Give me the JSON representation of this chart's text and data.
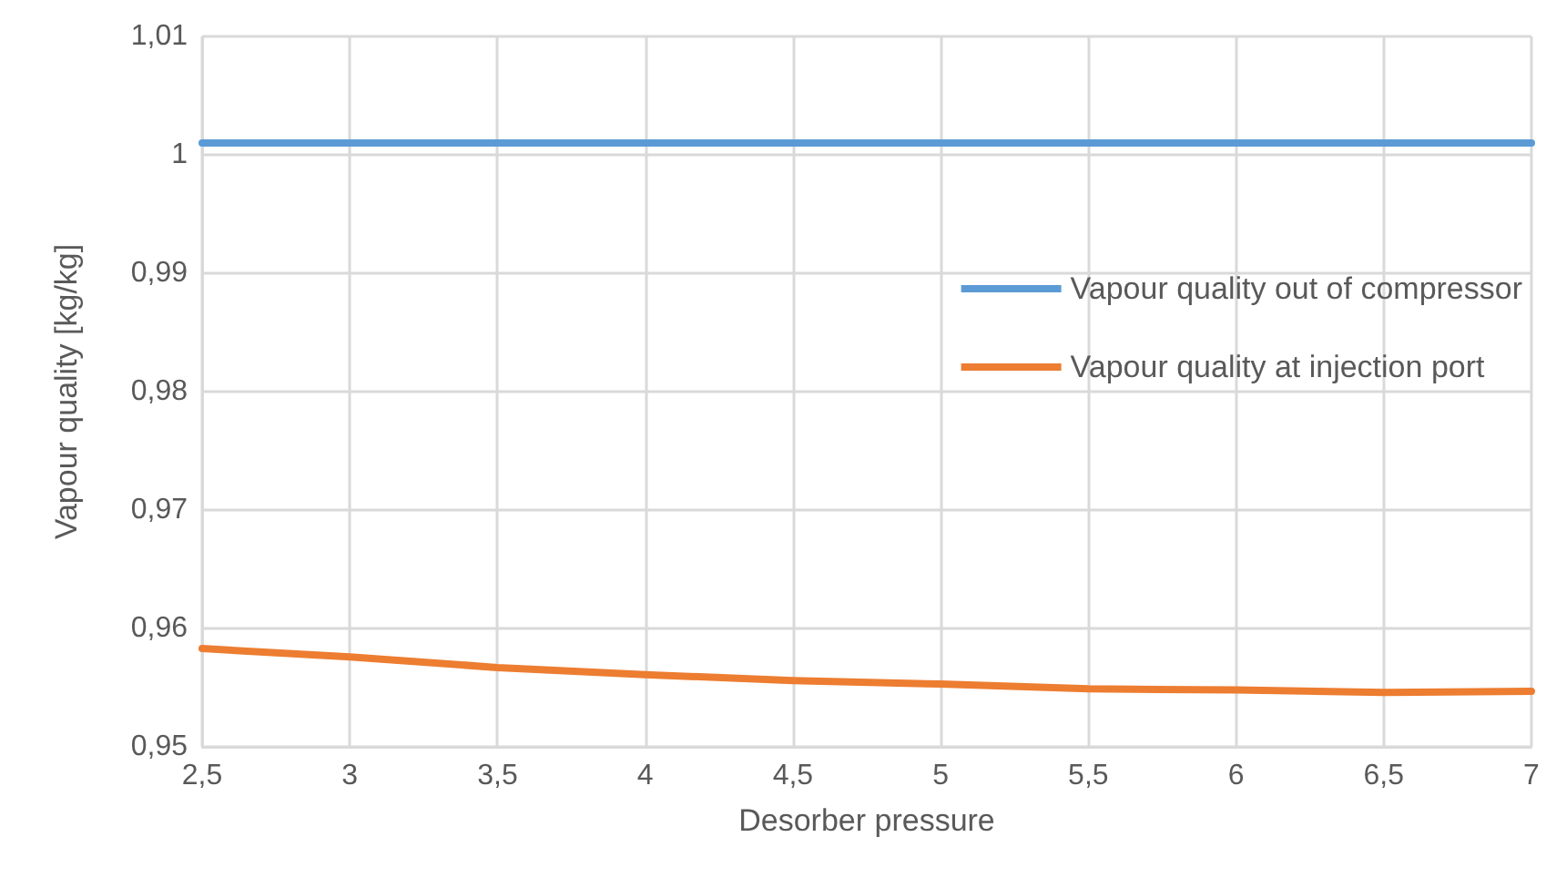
{
  "chart_data": {
    "type": "line",
    "xlabel": "Desorber pressure",
    "ylabel": "Vapour quality [kg/kg]",
    "x": [
      2.5,
      3,
      3.5,
      4,
      4.5,
      5,
      5.5,
      6,
      6.5,
      7
    ],
    "series": [
      {
        "name": "Vapour quality out of compressor",
        "color": "#5b9bd5",
        "values": [
          1.001,
          1.001,
          1.001,
          1.001,
          1.001,
          1.001,
          1.001,
          1.001,
          1.001,
          1.001
        ]
      },
      {
        "name": "Vapour quality at injection port",
        "color": "#ed7d31",
        "values": [
          0.9583,
          0.9576,
          0.9567,
          0.9561,
          0.9556,
          0.9553,
          0.9549,
          0.9548,
          0.9546,
          0.9547
        ]
      }
    ],
    "xlim": [
      2.5,
      7
    ],
    "xticks": [
      {
        "value": 2.5,
        "label": "2,5"
      },
      3,
      {
        "value": 3.5,
        "label": "3,5"
      },
      4,
      {
        "value": 4.5,
        "label": "4,5"
      },
      5,
      {
        "value": 5.5,
        "label": "5,5"
      },
      6,
      {
        "value": 6.5,
        "label": "6,5"
      },
      7
    ],
    "ylim": [
      0.95,
      1.01
    ],
    "yticks": [
      {
        "value": 0.95,
        "label": "0,95"
      },
      {
        "value": 0.96,
        "label": "0,96"
      },
      {
        "value": 0.97,
        "label": "0,97"
      },
      {
        "value": 0.98,
        "label": "0,98"
      },
      {
        "value": 0.99,
        "label": "0,99"
      },
      1,
      {
        "value": 1.01,
        "label": "1,01"
      }
    ],
    "grid": true,
    "legend": "right",
    "marker": "none",
    "line_style": "solid"
  }
}
